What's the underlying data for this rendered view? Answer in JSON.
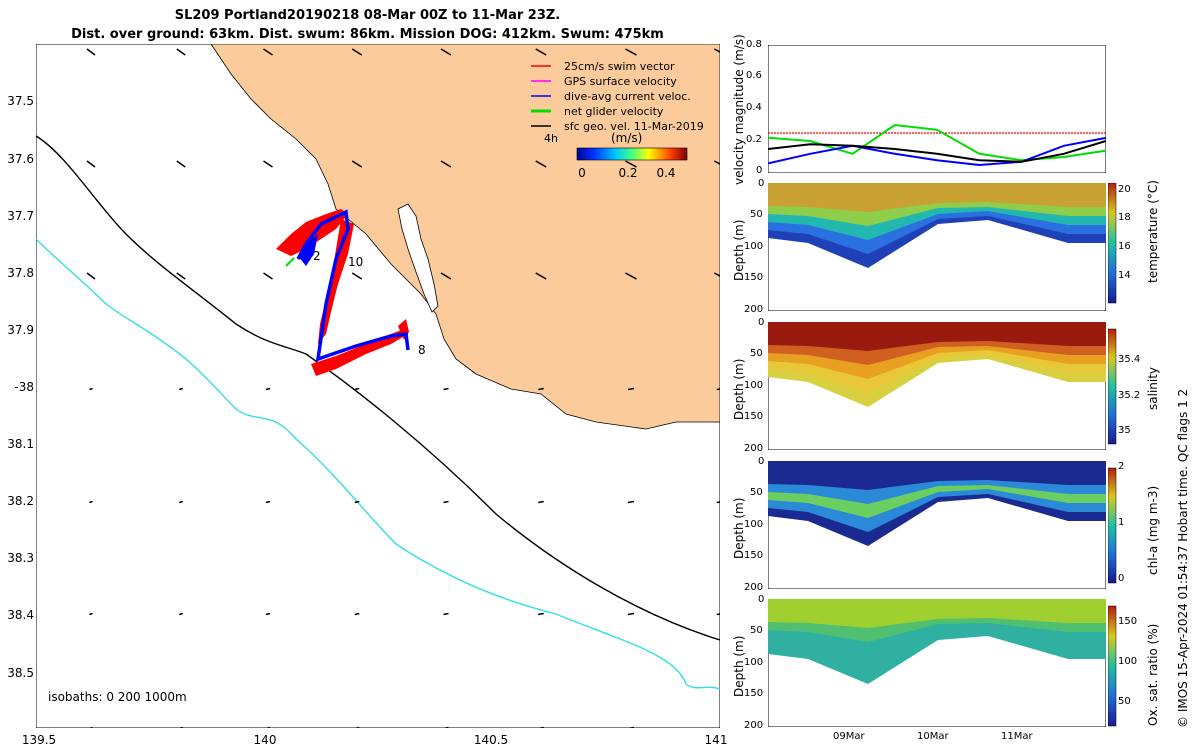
{
  "header": {
    "line1": "SL209 Portland20190218 08-Mar 00Z to 11-Mar 23Z.",
    "line2": "Dist. over ground: 63km. Dist. swum: 86km. Mission DOG: 412km. Swum: 475km"
  },
  "colors": {
    "land": "#FBCB9C",
    "isobath_0": "#000000",
    "isobath_200": "#000000",
    "isobath_1000": "#33E0E0",
    "swim": "#ff0000",
    "gps": "#ff00ff",
    "dive_avg": "#0000ff",
    "net": "#00dd00",
    "geo": "#000000"
  },
  "map": {
    "lat_ticks": [
      "37.5",
      "37.6",
      "37.7",
      "37.8",
      "37.9",
      "-38",
      "38.1",
      "38.2",
      "38.3",
      "38.4",
      "38.5"
    ],
    "lon_ticks": [
      "139.5",
      "140",
      "140.5",
      "141"
    ],
    "isobath_label": "isobaths: 0   200  1000m",
    "waypoint_labels": [
      "2",
      "10",
      "8"
    ],
    "legend": {
      "items": [
        "25cm/s swim vector",
        "GPS surface velocity",
        "dive-avg current veloc.",
        "net glider velocity",
        "sfc geo. vel. 11-Mar-2019"
      ],
      "interval": "4h",
      "colorbar_label": "(m/s)",
      "colorbar_ticks": [
        "0",
        "0.2",
        "0.4"
      ]
    }
  },
  "chart_data": [
    {
      "type": "line",
      "title": "",
      "ylabel": "velocity magnitude (m/s)",
      "ylim": [
        0,
        0.8
      ],
      "yticks": [
        "0",
        "0.2",
        "0.4",
        "0.6",
        "0.8"
      ],
      "x": [
        "08-Mar 00Z",
        "08-Mar 12Z",
        "09-Mar 00Z",
        "09-Mar 12Z",
        "10-Mar 00Z",
        "10-Mar 12Z",
        "11-Mar 00Z",
        "11-Mar 12Z",
        "11-Mar 23Z"
      ],
      "series": [
        {
          "color": "#ff0000",
          "values": [
            0.25,
            0.25,
            0.25,
            0.25,
            0.25,
            0.25,
            0.25,
            0.25,
            0.25
          ]
        },
        {
          "color": "#00dd00",
          "values": [
            0.22,
            0.2,
            0.12,
            0.3,
            0.27,
            0.12,
            0.08,
            0.1,
            0.14
          ]
        },
        {
          "color": "#0000ff",
          "values": [
            0.06,
            0.12,
            0.17,
            0.12,
            0.08,
            0.05,
            0.07,
            0.17,
            0.22
          ]
        },
        {
          "color": "#000000",
          "values": [
            0.15,
            0.18,
            0.17,
            0.15,
            0.12,
            0.08,
            0.07,
            0.12,
            0.2
          ]
        }
      ]
    },
    {
      "type": "heatmap",
      "ylabel": "Depth (m)",
      "yticks": [
        "0",
        "50",
        "100",
        "150",
        "200"
      ],
      "colorbar_label": "temperature (°C)",
      "colorbar_ticks": [
        "14",
        "16",
        "18",
        "20"
      ],
      "range": [
        12.5,
        20
      ]
    },
    {
      "type": "heatmap",
      "ylabel": "Depth (m)",
      "yticks": [
        "0",
        "50",
        "100",
        "150",
        "200"
      ],
      "colorbar_label": "salinity",
      "colorbar_ticks": [
        "35",
        "35.2",
        "35.4"
      ],
      "range": [
        34.95,
        35.55
      ]
    },
    {
      "type": "heatmap",
      "ylabel": "Depth (m)",
      "yticks": [
        "0",
        "50",
        "100",
        "150",
        "200"
      ],
      "colorbar_label": "chl-a (mg m-3)",
      "colorbar_ticks": [
        "0",
        "1",
        "2"
      ],
      "range": [
        0,
        2
      ]
    },
    {
      "type": "heatmap",
      "ylabel": "Depth (m)",
      "yticks": [
        "0",
        "50",
        "100",
        "150",
        "200"
      ],
      "xticks": [
        "09Mar",
        "10Mar",
        "11Mar"
      ],
      "colorbar_label": "Ox. sat. ratio (%)",
      "colorbar_ticks": [
        "50",
        "100",
        "150"
      ],
      "range": [
        25,
        175
      ]
    }
  ],
  "credit": "© IMOS 15-Apr-2024 01:54:37 Hobart time. QC flags 1  2"
}
